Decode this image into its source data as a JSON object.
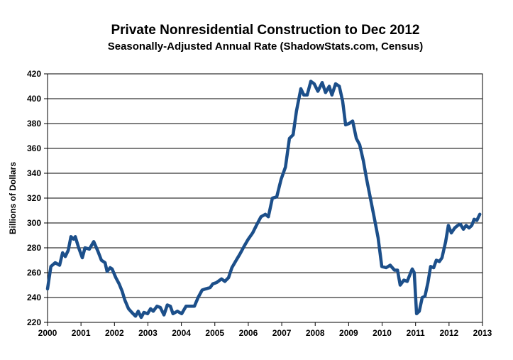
{
  "chart_data": {
    "type": "line",
    "title": "Private Nonresidential Construction to Dec 2012",
    "subtitle": "Seasonally-Adjusted Annual Rate (ShadowStats.com, Census)",
    "y_label": "Billions of Dollars",
    "xlim": [
      2000,
      2013
    ],
    "xticks": [
      2000,
      2001,
      2002,
      2003,
      2004,
      2005,
      2006,
      2007,
      2008,
      2009,
      2010,
      2011,
      2012,
      2013
    ],
    "ylim": [
      220,
      420
    ],
    "yticks": [
      220,
      240,
      260,
      280,
      300,
      320,
      340,
      360,
      380,
      400,
      420
    ],
    "grid": true,
    "x": [
      2000.0,
      2000.1,
      2000.23,
      2000.36,
      2000.45,
      2000.53,
      2000.62,
      2000.7,
      2000.78,
      2000.83,
      2000.93,
      2001.04,
      2001.12,
      2001.25,
      2001.38,
      2001.51,
      2001.61,
      2001.72,
      2001.78,
      2001.87,
      2001.93,
      2002.04,
      2002.14,
      2002.23,
      2002.31,
      2002.42,
      2002.52,
      2002.63,
      2002.71,
      2002.8,
      2002.88,
      2002.99,
      2003.08,
      2003.16,
      2003.27,
      2003.37,
      2003.48,
      2003.58,
      2003.67,
      2003.75,
      2003.88,
      2004.01,
      2004.14,
      2004.26,
      2004.39,
      2004.5,
      2004.62,
      2004.73,
      2004.86,
      2004.94,
      2005.05,
      2005.2,
      2005.3,
      2005.41,
      2005.51,
      2005.64,
      2005.75,
      2005.87,
      2006.0,
      2006.13,
      2006.26,
      2006.38,
      2006.51,
      2006.6,
      2006.72,
      2006.85,
      2006.98,
      2007.11,
      2007.23,
      2007.34,
      2007.44,
      2007.57,
      2007.66,
      2007.76,
      2007.87,
      2007.97,
      2008.08,
      2008.21,
      2008.31,
      2008.42,
      2008.5,
      2008.61,
      2008.72,
      2008.82,
      2008.91,
      2009.01,
      2009.12,
      2009.23,
      2009.33,
      2009.44,
      2009.54,
      2009.65,
      2009.76,
      2009.88,
      2009.99,
      2010.12,
      2010.24,
      2010.37,
      2010.46,
      2010.54,
      2010.65,
      2010.75,
      2010.84,
      2010.9,
      2010.96,
      2011.03,
      2011.11,
      2011.2,
      2011.28,
      2011.37,
      2011.45,
      2011.54,
      2011.62,
      2011.71,
      2011.79,
      2011.9,
      2011.98,
      2012.07,
      2012.17,
      2012.26,
      2012.34,
      2012.43,
      2012.51,
      2012.6,
      2012.68,
      2012.75,
      2012.83,
      2012.92
    ],
    "series": [
      {
        "name": "Private Nonresidential Construction",
        "color": "#1c4f8a",
        "values": [
          247,
          265,
          268,
          266,
          276,
          273,
          278,
          289,
          287,
          289,
          280,
          272,
          280,
          279,
          285,
          277,
          270,
          268,
          261,
          264,
          263,
          256,
          251,
          245,
          238,
          231,
          228,
          225,
          229,
          224,
          228,
          227,
          231,
          229,
          233,
          232,
          226,
          234,
          233,
          227,
          229,
          227,
          233,
          233,
          233,
          240,
          246,
          247,
          248,
          251,
          252,
          255,
          253,
          256,
          264,
          270,
          275,
          281,
          287,
          292,
          299,
          305,
          307,
          305,
          320,
          321,
          335,
          345,
          368,
          371,
          390,
          408,
          403,
          403,
          414,
          412,
          406,
          413,
          405,
          410,
          403,
          412,
          410,
          398,
          379,
          380,
          382,
          368,
          363,
          350,
          335,
          320,
          305,
          288,
          265,
          264,
          266,
          262,
          262,
          250,
          254,
          253,
          259,
          263,
          260,
          227,
          229,
          240,
          241,
          252,
          265,
          264,
          270,
          269,
          272,
          285,
          298,
          292,
          296,
          298,
          299,
          295,
          298,
          296,
          298,
          303,
          302,
          307
        ]
      }
    ]
  }
}
